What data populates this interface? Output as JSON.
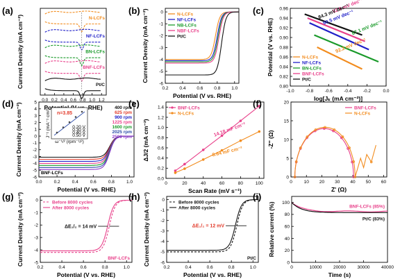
{
  "panels": [
    {
      "label": "(a)",
      "xlabel": "Potential (V vs. RHE)",
      "ylabel": "Current Density (mA cm⁻²)",
      "xticks": [
        "0.0",
        "0.2",
        "0.4",
        "0.6",
        "0.8",
        "1.0",
        "1.2"
      ],
      "series": [
        {
          "name": "N-LCFs",
          "color": "#f28c1e"
        },
        {
          "name": "NF-LCFs",
          "color": "#2020c8"
        },
        {
          "name": "BN-LCFs",
          "color": "#1a9a2a"
        },
        {
          "name": "BNF-LCFs",
          "color": "#e8408a"
        },
        {
          "name": "Pt/C",
          "color": "#111111"
        }
      ]
    },
    {
      "label": "(b)",
      "xlabel": "Potential (V vs. RHE)",
      "ylabel": "Current Density (mA cm⁻²)",
      "xticks": [
        "0.2",
        "0.4",
        "0.6",
        "0.8",
        "1.0"
      ],
      "yticks": [
        "0",
        "-1",
        "-2",
        "-3",
        "-4",
        "-5",
        "-6"
      ],
      "series": [
        {
          "name": "N-LCFs",
          "color": "#f28c1e"
        },
        {
          "name": "NF-LCFs",
          "color": "#2020c8"
        },
        {
          "name": "NB-LCFs",
          "color": "#1a9a2a"
        },
        {
          "name": "NBF-LCFs",
          "color": "#e8408a"
        },
        {
          "name": "Pt/C",
          "color": "#111111"
        }
      ]
    },
    {
      "label": "(c)",
      "xlabel": "log[Jₖ (mA cm⁻²)]",
      "ylabel": "Potential (V vs. RHE)",
      "xticks": [
        "-1.0",
        "-0.8",
        "-0.6",
        "-0.4",
        "-0.2",
        "0.0"
      ],
      "yticks": [
        "0.96",
        "0.94",
        "0.92",
        "0.90",
        "0.88",
        "0.86",
        "0.84",
        "0.82",
        "0.80"
      ],
      "tafel": [
        "82.0 mV dec⁻¹",
        "84.3 mV dec⁻¹",
        "90.5 mV dec⁻¹",
        "87.1 mV dec⁻¹",
        "92.2 mV dec⁻¹"
      ],
      "series": [
        {
          "name": "N-LCFs",
          "color": "#f28c1e"
        },
        {
          "name": "NF-LCFs",
          "color": "#2020c8"
        },
        {
          "name": "BN-LCFs",
          "color": "#1a9a2a"
        },
        {
          "name": "BNF-LCFs",
          "color": "#e8408a"
        },
        {
          "name": "Pt/C",
          "color": "#111111"
        }
      ]
    },
    {
      "label": "(d)",
      "xlabel": "Potential (V vs. RHE)",
      "ylabel": "Current Density (mA cm⁻²)",
      "xticks": [
        "0.0",
        "0.2",
        "0.4",
        "0.6",
        "0.8",
        "1.0"
      ],
      "yticks": [
        "5",
        "4",
        "3",
        "2",
        "1",
        "0",
        "-1",
        "-2",
        "-3",
        "-4",
        "-5",
        "-6"
      ],
      "n": "n=3.85",
      "sample": "BNF-LCFs",
      "rpm": [
        {
          "name": "400 rpm",
          "color": "#111111"
        },
        {
          "name": "625 rpm",
          "color": "#e23a2a"
        },
        {
          "name": "900 rpm",
          "color": "#2020c8"
        },
        {
          "name": "1225 rpm",
          "color": "#e8408a"
        },
        {
          "name": "1600 rpm",
          "color": "#1a9a2a"
        },
        {
          "name": "2025 rpm",
          "color": "#2a4aa8"
        },
        {
          "name": "2500 rpm",
          "color": "#8a3ac8"
        }
      ],
      "inset": {
        "xlabel": "ω⁻¹/² (rpm⁻¹/²)",
        "ylabel": "J⁻¹ (mA⁻¹ cm²)",
        "legend": [
          "0.20 V",
          "0.30 V",
          "0.40 V",
          "0.50 V"
        ]
      }
    },
    {
      "label": "(e)",
      "xlabel": "Scan Rate (mV s⁻¹)",
      "ylabel": "ΔJ/2 (mA cm⁻²)",
      "xticks": [
        "0",
        "20",
        "40",
        "60",
        "80",
        "100"
      ],
      "yticks": [
        "0.0",
        "0.2",
        "0.4",
        "0.6",
        "0.8",
        "1.0",
        "1.2",
        "1.4"
      ],
      "series": [
        {
          "name": "BNF-LCFs",
          "color": "#e8408a"
        },
        {
          "name": "N-LCFs",
          "color": "#f28c1e"
        }
      ],
      "cap": [
        "14.18 mF cm⁻²",
        "8.64 mF cm⁻²"
      ]
    },
    {
      "label": "(f)",
      "xlabel": "Z' (Ω)",
      "ylabel": "-Z'' (Ω)",
      "xticks": [
        "0",
        "10",
        "20",
        "30",
        "40",
        "50",
        "60"
      ],
      "yticks": [
        "0",
        "5",
        "10",
        "15",
        "20"
      ],
      "series": [
        {
          "name": "BNF-LCFs",
          "color": "#e8408a"
        },
        {
          "name": "N-LCFs",
          "color": "#f28c1e"
        }
      ]
    },
    {
      "label": "(g)",
      "xlabel": "Potential (V vs. RHE)",
      "ylabel": "Current Density (mA cm⁻²)",
      "xticks": [
        "0.2",
        "0.4",
        "0.6",
        "0.8",
        "1.0"
      ],
      "yticks": [
        "0",
        "-1",
        "-2",
        "-3",
        "-4",
        "-5"
      ],
      "legend": [
        "Before 8000 cycles",
        "After 8000 cycles"
      ],
      "delta": "ΔE₁/₂ = 14 mV",
      "sample": "BNF-LCFs",
      "color": "#e8408a"
    },
    {
      "label": "(h)",
      "xlabel": "Potential (V vs. RHE)",
      "ylabel": "Current Density (mA cm⁻²)",
      "xticks": [
        "0.2",
        "0.4",
        "0.6",
        "0.8",
        "1.0"
      ],
      "yticks": [
        "0",
        "-1",
        "-2",
        "-3",
        "-4",
        "-5",
        "-6"
      ],
      "legend": [
        "Before 8000 cycles",
        "After 8000 cycles"
      ],
      "delta": "ΔE₁/₂ = 12 mV",
      "sample": "Pt/C",
      "color": "#111111"
    },
    {
      "label": "(i)",
      "xlabel": "Time  (s)",
      "ylabel": "Relative current (%)",
      "xticks": [
        "0",
        "10000",
        "20000",
        "30000",
        "40000"
      ],
      "yticks": [
        "100",
        "80",
        "60",
        "40",
        "20",
        "0"
      ],
      "series": [
        {
          "name": "BNF-LCFs (85%)",
          "color": "#e8408a"
        },
        {
          "name": "Pt/C (83%)",
          "color": "#111111"
        }
      ]
    }
  ],
  "chart_data": [
    {
      "type": "line",
      "title": "(a)",
      "xlabel": "Potential (V vs. RHE)",
      "ylabel": "Current Density (mA cm⁻²)",
      "xlim": [
        -0.1,
        1.3
      ],
      "series": [
        "N-LCFs",
        "NF-LCFs",
        "BN-LCFs",
        "BNF-LCFs",
        "Pt/C"
      ]
    },
    {
      "type": "line",
      "title": "(b)",
      "xlabel": "Potential (V vs. RHE)",
      "ylabel": "Current Density (mA cm⁻²)",
      "xlim": [
        0.2,
        1.05
      ],
      "ylim": [
        -6,
        0.3
      ],
      "series": [
        {
          "name": "N-LCFs",
          "onset": 0.86,
          "limiting": -4.0
        },
        {
          "name": "NF-LCFs",
          "onset": 0.88,
          "limiting": -4.1
        },
        {
          "name": "NB-LCFs",
          "onset": 0.89,
          "limiting": -4.2
        },
        {
          "name": "NBF-LCFs",
          "onset": 0.9,
          "limiting": -4.3
        },
        {
          "name": "Pt/C",
          "onset": 0.93,
          "limiting": -5.3
        }
      ]
    },
    {
      "type": "line",
      "title": "(c)",
      "xlabel": "log[Jₖ (mA cm⁻²)]",
      "ylabel": "Potential (V vs. RHE)",
      "xlim": [
        -1.0,
        0.0
      ],
      "ylim": [
        0.8,
        0.96
      ],
      "series": [
        {
          "name": "N-LCFs",
          "slope": "92.2 mV dec⁻¹"
        },
        {
          "name": "NF-LCFs",
          "slope": "90.5 mV dec⁻¹"
        },
        {
          "name": "BN-LCFs",
          "slope": "87.1 mV dec⁻¹"
        },
        {
          "name": "BNF-LCFs",
          "slope": "84.3 mV dec⁻¹"
        },
        {
          "name": "Pt/C",
          "slope": "82.0 mV dec⁻¹"
        }
      ]
    },
    {
      "type": "line",
      "title": "(d)",
      "xlabel": "Potential (V vs. RHE)",
      "ylabel": "Current Density (mA cm⁻²)",
      "xlim": [
        0.0,
        1.05
      ],
      "ylim": [
        -6,
        5
      ],
      "series": [
        {
          "name": "400 rpm",
          "limiting": -3.1
        },
        {
          "name": "625 rpm",
          "limiting": -3.4
        },
        {
          "name": "900 rpm",
          "limiting": -3.7
        },
        {
          "name": "1225 rpm",
          "limiting": -4.0
        },
        {
          "name": "1600 rpm",
          "limiting": -4.3
        },
        {
          "name": "2025 rpm",
          "limiting": -4.6
        },
        {
          "name": "2500 rpm",
          "limiting": -4.9
        }
      ]
    },
    {
      "type": "scatter",
      "title": "(e)",
      "xlabel": "Scan Rate (mV s⁻¹)",
      "ylabel": "ΔJ/2 (mA cm⁻²)",
      "xlim": [
        0,
        105
      ],
      "ylim": [
        0,
        1.5
      ],
      "x": [
        10,
        20,
        40,
        60,
        80,
        100
      ],
      "series": [
        {
          "name": "BNF-LCFs",
          "values": [
            0.15,
            0.28,
            0.56,
            0.84,
            1.13,
            1.42
          ]
        },
        {
          "name": "N-LCFs",
          "values": [
            0.11,
            0.19,
            0.37,
            0.55,
            0.74,
            0.92
          ]
        }
      ]
    },
    {
      "type": "scatter",
      "title": "(f)",
      "xlabel": "Z' (Ω)",
      "ylabel": "-Z'' (Ω)",
      "xlim": [
        0,
        62
      ],
      "ylim": [
        0,
        20
      ],
      "series": [
        {
          "name": "BNF-LCFs",
          "center": 21.5,
          "radius": 19
        },
        {
          "name": "N-LCFs",
          "center": 22,
          "radius": 19.5
        }
      ]
    },
    {
      "type": "line",
      "title": "(g)",
      "xlabel": "Potential (V vs. RHE)",
      "ylabel": "Current Density (mA cm⁻²)",
      "xlim": [
        0.2,
        1.05
      ],
      "ylim": [
        -5,
        0.3
      ],
      "series": [
        {
          "name": "Before 8000 cycles",
          "e_half": 0.84
        },
        {
          "name": "After 8000 cycles",
          "e_half": 0.826
        }
      ]
    },
    {
      "type": "line",
      "title": "(h)",
      "xlabel": "Potential (V vs. RHE)",
      "ylabel": "Current Density (mA cm⁻²)",
      "xlim": [
        0.2,
        1.05
      ],
      "ylim": [
        -6,
        0.3
      ],
      "series": [
        {
          "name": "Before 8000 cycles",
          "e_half": 0.85
        },
        {
          "name": "After 8000 cycles",
          "e_half": 0.838
        }
      ]
    },
    {
      "type": "line",
      "title": "(i)",
      "xlabel": "Time (s)",
      "ylabel": "Relative current (%)",
      "xlim": [
        0,
        40000
      ],
      "ylim": [
        0,
        110
      ],
      "series": [
        {
          "name": "BNF-LCFs (85%)",
          "final": 85
        },
        {
          "name": "Pt/C (83%)",
          "final": 83
        }
      ]
    }
  ]
}
